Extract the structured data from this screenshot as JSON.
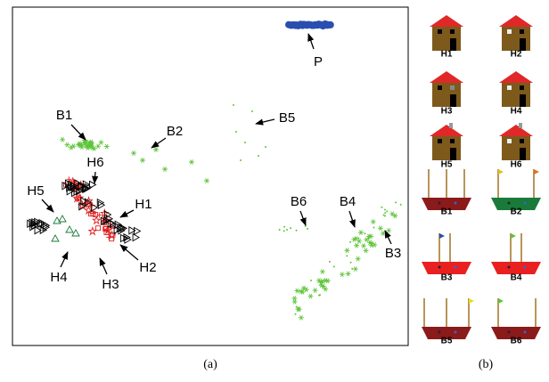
{
  "scatter_labels": [
    "P",
    "B1",
    "B2",
    "B5",
    "H6",
    "H5",
    "H1",
    "H2",
    "H3",
    "H4",
    "B6",
    "B4",
    "B3"
  ],
  "icon_labels": [
    "H1",
    "H2",
    "H3",
    "H4",
    "H5",
    "H6",
    "B1",
    "B2",
    "B3",
    "B4",
    "B5",
    "B6"
  ],
  "captions": [
    "(a)",
    "(b)"
  ]
}
